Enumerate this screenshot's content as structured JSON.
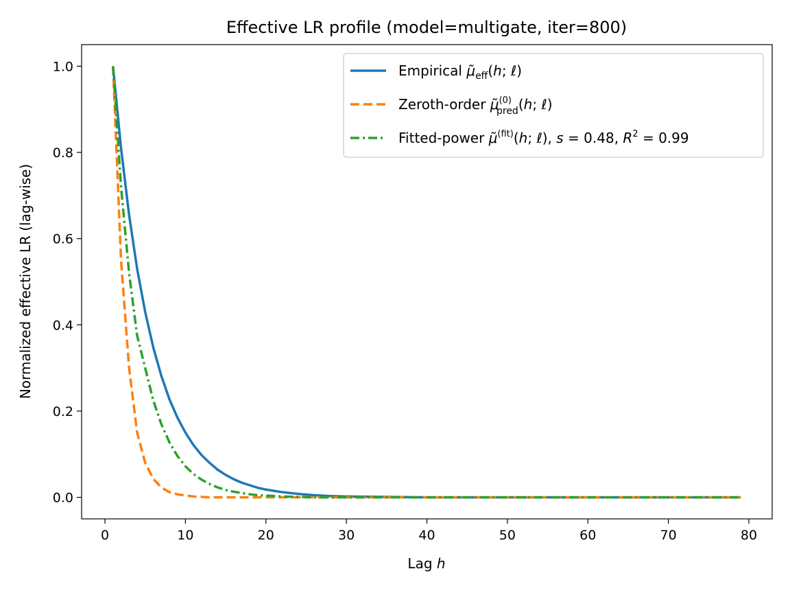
{
  "chart_data": {
    "type": "line",
    "title": "Effective LR profile (model=multigate, iter=800)",
    "xlabel": "Lag h",
    "ylabel": "Normalized effective LR (lag-wise)",
    "xlim": [
      -2.9,
      82.9
    ],
    "ylim": [
      -0.05,
      1.05
    ],
    "xticks": [
      0,
      10,
      20,
      30,
      40,
      50,
      60,
      70,
      80
    ],
    "yticks": [
      0.0,
      0.2,
      0.4,
      0.6,
      0.8,
      1.0
    ],
    "xtick_labels": [
      "0",
      "10",
      "20",
      "30",
      "40",
      "50",
      "60",
      "70",
      "80"
    ],
    "ytick_labels": [
      "0.0",
      "0.2",
      "0.4",
      "0.6",
      "0.8",
      "1.0"
    ],
    "grid": false,
    "legend_position": "upper right",
    "x": [
      1,
      2,
      3,
      4,
      5,
      6,
      7,
      8,
      9,
      10,
      11,
      12,
      13,
      14,
      15,
      16,
      17,
      18,
      19,
      20,
      22,
      24,
      26,
      28,
      30,
      35,
      40,
      50,
      60,
      70,
      79
    ],
    "series": [
      {
        "name": "Empirical μ̃eff(h;ℓ)",
        "color": "#1f77b4",
        "style": "solid",
        "values": [
          1.0,
          0.81,
          0.655,
          0.53,
          0.43,
          0.348,
          0.282,
          0.228,
          0.185,
          0.15,
          0.121,
          0.098,
          0.08,
          0.064,
          0.052,
          0.042,
          0.034,
          0.028,
          0.022,
          0.018,
          0.012,
          0.008,
          0.005,
          0.003,
          0.002,
          0.001,
          0.0,
          0.0,
          0.0,
          0.0,
          0.0
        ]
      },
      {
        "name": "Zeroth-order μ̃pred(0)(h;ℓ)",
        "color": "#ff7f0e",
        "style": "dashed",
        "values": [
          1.0,
          0.55,
          0.3,
          0.15,
          0.08,
          0.043,
          0.023,
          0.012,
          0.007,
          0.004,
          0.002,
          0.001,
          0.0,
          0.0,
          0.0,
          0.0,
          0.0,
          0.0,
          0.0,
          0.0,
          0.0,
          0.0,
          0.0,
          0.0,
          0.0,
          0.0,
          0.0,
          0.0,
          0.0,
          0.0,
          0.0
        ]
      },
      {
        "name": "Fitted-power μ̃(fit)(h;ℓ), s=0.48, R²=0.99",
        "color": "#2ca02c",
        "style": "dashdot",
        "values": [
          1.0,
          0.72,
          0.52,
          0.375,
          0.3,
          0.225,
          0.17,
          0.128,
          0.096,
          0.072,
          0.054,
          0.041,
          0.031,
          0.023,
          0.017,
          0.013,
          0.01,
          0.007,
          0.005,
          0.004,
          0.002,
          0.001,
          0.0,
          0.0,
          0.0,
          0.0,
          0.0,
          0.0,
          0.0,
          0.0,
          0.0
        ]
      }
    ],
    "legend_html": [
      "Empirical <tspan font-style=\"italic\">μ̃</tspan><tspan font-size=\"14\" dy=\"5\">eff</tspan><tspan dy=\"-5\">(</tspan><tspan font-style=\"italic\">h</tspan>; <tspan font-style=\"italic\">ℓ</tspan>)",
      "Zeroth-order <tspan font-style=\"italic\">μ̃</tspan><tspan font-size=\"13\" dy=\"-9\">(0)</tspan><tspan font-size=\"14\" dx=\"-22\" dy=\"16\">pred</tspan><tspan dy=\"-7\">(</tspan><tspan font-style=\"italic\">h</tspan>; <tspan font-style=\"italic\">ℓ</tspan>)",
      "Fitted-power <tspan font-style=\"italic\">μ̃</tspan><tspan font-size=\"13\" dy=\"-9\">(fit)</tspan><tspan dy=\"9\">(</tspan><tspan font-style=\"italic\">h</tspan>; <tspan font-style=\"italic\">ℓ</tspan>), <tspan font-style=\"italic\">s</tspan> = 0.48, <tspan font-style=\"italic\">R</tspan><tspan font-size=\"13\" dy=\"-9\">2</tspan><tspan dy=\"9\"> = 0.99</tspan>"
    ]
  }
}
